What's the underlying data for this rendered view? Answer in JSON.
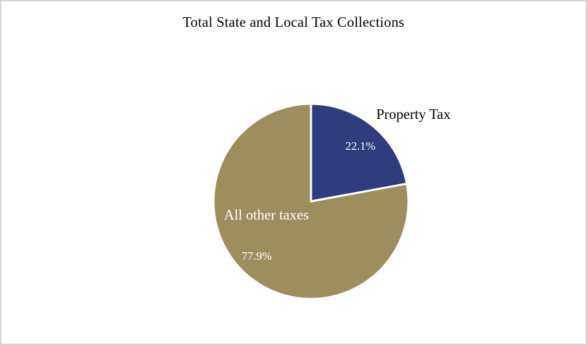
{
  "page": {
    "background_color": "#FFFFFF",
    "frame_border_color": "#D4D4D4"
  },
  "chart_data": {
    "type": "pie",
    "title": "Total State and Local Tax Collections",
    "legend": "none",
    "direction": "clockwise",
    "start_angle": "12 o'clock",
    "slice_border_color": "#FFFFFF",
    "slices": [
      {
        "label": "Property Tax",
        "value": 22.1,
        "display": "22.1%",
        "color": "#2F3C7E",
        "label_position": "outside-top-right",
        "label_color": "#000000",
        "value_label_color": "#FFFFFF"
      },
      {
        "label": "All other taxes",
        "value": 77.9,
        "display": "77.9%",
        "color": "#9D8E5E",
        "label_position": "inside-left",
        "label_color": "#FFFFFF",
        "value_label_color": "#FFFFFF"
      }
    ]
  }
}
